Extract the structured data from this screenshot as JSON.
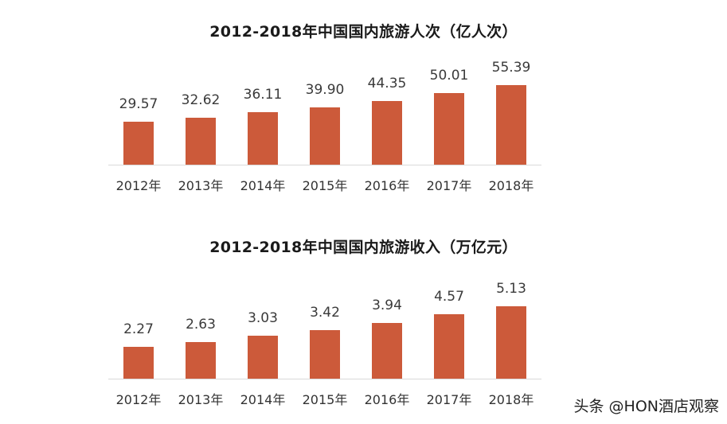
{
  "chart_data": [
    {
      "type": "bar",
      "title": "2012-2018年中国国内旅游人次（亿人次）",
      "categories": [
        "2012年",
        "2013年",
        "2014年",
        "2015年",
        "2016年",
        "2017年",
        "2018年"
      ],
      "values": [
        29.57,
        32.62,
        36.11,
        39.9,
        44.35,
        50.01,
        55.39
      ],
      "value_labels": [
        "29.57",
        "32.62",
        "36.11",
        "39.90",
        "44.35",
        "50.01",
        "55.39"
      ],
      "xlabel": "",
      "ylabel": "",
      "unit": "亿人次",
      "grid": false,
      "legend": null,
      "color": "#CC5A3A"
    },
    {
      "type": "bar",
      "title": "2012-2018年中国国内旅游收入（万亿元）",
      "categories": [
        "2012年",
        "2013年",
        "2014年",
        "2015年",
        "2016年",
        "2017年",
        "2018年"
      ],
      "values": [
        2.27,
        2.63,
        3.03,
        3.42,
        3.94,
        4.57,
        5.13
      ],
      "value_labels": [
        "2.27",
        "2.63",
        "3.03",
        "3.42",
        "3.94",
        "4.57",
        "5.13"
      ],
      "xlabel": "",
      "ylabel": "",
      "unit": "万亿元",
      "grid": false,
      "legend": null,
      "color": "#CC5A3A"
    }
  ],
  "watermark": "头条 @HON酒店观察"
}
